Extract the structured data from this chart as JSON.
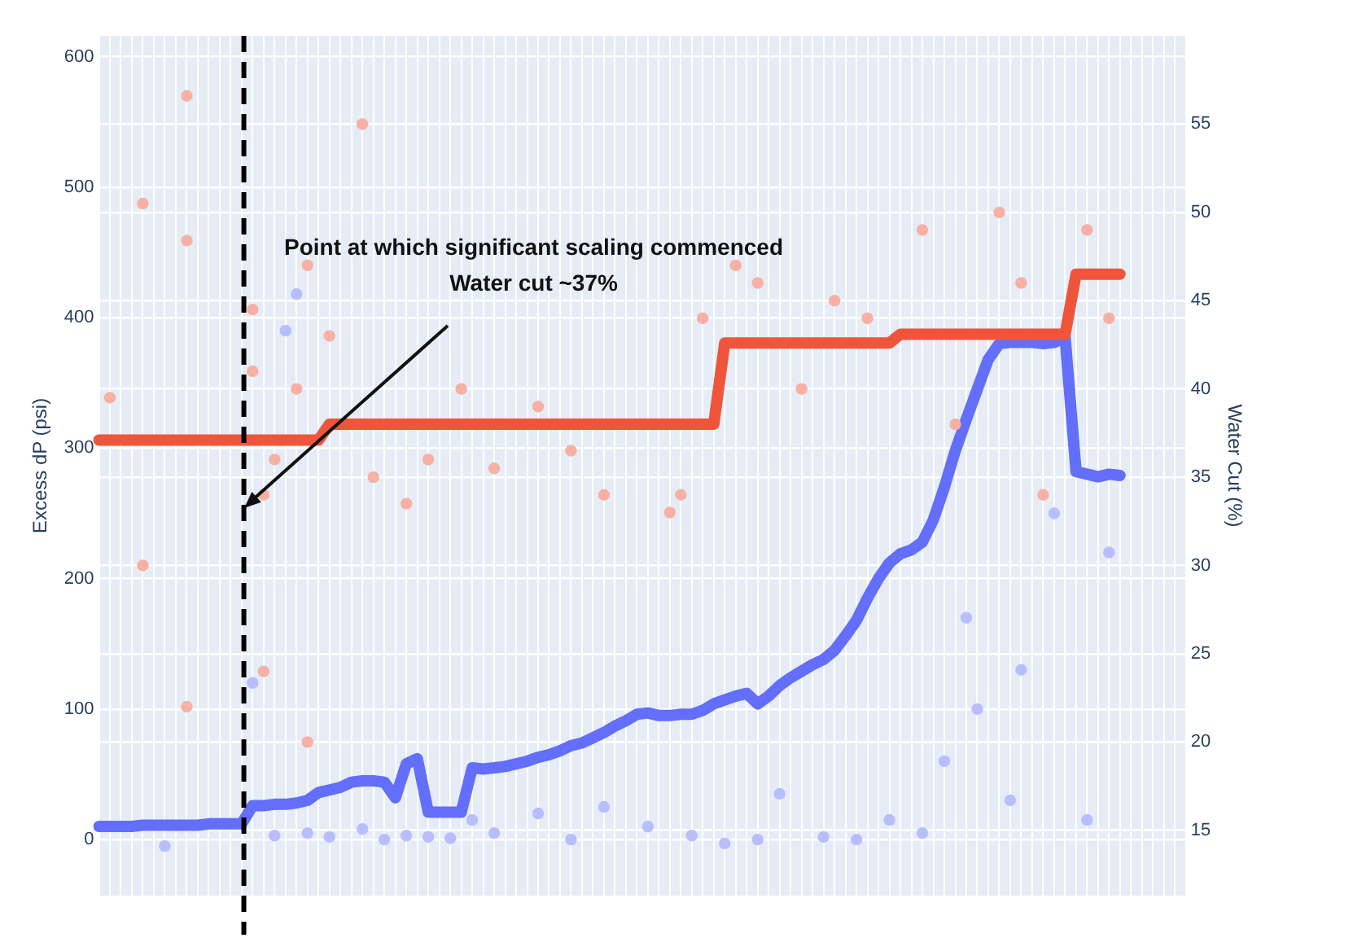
{
  "chart_data": {
    "type": "line",
    "ylabel": "Excess dP (psi)",
    "y2label": "Water Cut (%)",
    "annotations": [
      "Point at which significant scaling commenced\nWater cut ~37%"
    ],
    "categories": [
      null,
      null,
      null,
      null,
      null,
      null,
      null,
      null,
      null,
      null,
      null,
      null,
      null,
      null,
      null,
      null,
      null,
      null,
      null,
      null,
      null,
      null,
      null,
      null,
      null,
      null,
      null,
      null,
      null,
      null,
      null,
      null,
      null,
      null,
      null,
      null,
      null,
      null,
      null,
      null,
      null,
      null,
      null,
      null,
      null,
      null,
      null,
      null,
      null,
      null,
      null,
      null,
      null,
      null,
      null,
      null,
      null,
      null,
      null,
      null,
      null,
      null,
      null,
      null,
      null,
      null,
      null,
      null,
      null,
      null,
      null,
      null,
      null,
      null,
      null,
      null,
      null,
      null,
      null,
      null,
      null,
      null,
      null,
      null,
      null,
      null,
      null,
      null,
      null,
      null,
      null,
      null,
      null,
      null,
      null,
      null,
      null,
      null,
      null,
      null
    ],
    "ylim": [
      -43,
      616
    ],
    "yticks": [
      0,
      100,
      200,
      300,
      400,
      500,
      600
    ],
    "y2lim": [
      11.3,
      60
    ],
    "y2ticks": [
      15,
      20,
      25,
      30,
      35,
      40,
      45,
      50,
      55
    ],
    "grid": true,
    "legend": false,
    "series": [
      {
        "type": "scatter",
        "color": "#f6b0a4",
        "axis": "y2",
        "values": [
          null,
          39.5,
          null,
          null,
          50.5,
          null,
          null,
          null,
          56.6,
          null,
          null,
          null,
          null,
          null,
          44.5,
          34,
          36,
          null,
          40,
          47,
          null,
          43,
          null,
          null,
          55,
          35,
          null,
          null,
          33.5,
          null,
          36,
          null,
          null,
          40,
          null,
          null,
          35.5,
          null,
          null,
          null,
          39,
          null,
          null,
          36.5,
          null,
          null,
          34,
          null,
          null,
          null,
          null,
          null,
          33,
          null,
          null,
          44,
          null,
          null,
          47,
          null,
          46,
          null,
          null,
          null,
          40,
          null,
          null,
          45,
          null,
          null,
          44,
          null,
          null,
          null,
          null,
          49,
          null,
          null,
          38,
          null,
          null,
          null,
          50,
          null,
          46,
          null,
          34,
          null,
          null,
          null,
          49,
          null,
          44,
          null,
          null,
          null,
          null,
          null,
          null,
          null
        ]
      },
      {
        "type": "scatter",
        "color": "#f6b0a4",
        "axis": "y2",
        "values": [
          null,
          null,
          null,
          null,
          30,
          null,
          null,
          null,
          48.4,
          null,
          null,
          null,
          null,
          null,
          41,
          24,
          null,
          null,
          null,
          20,
          null,
          null,
          null,
          null,
          null,
          null,
          null,
          null,
          null,
          null,
          null,
          null,
          null,
          null,
          null,
          null,
          null,
          null,
          null,
          null,
          null,
          null,
          null,
          null,
          null,
          null,
          null,
          null,
          null,
          null,
          null,
          null,
          null,
          34,
          null,
          null,
          null,
          null,
          null,
          null,
          null,
          null,
          null,
          null,
          null,
          null,
          null,
          null,
          null,
          null,
          null,
          null,
          null,
          null,
          null,
          null,
          null,
          null,
          null,
          null,
          null,
          null,
          null,
          null,
          null,
          null,
          null,
          null,
          null,
          null,
          null,
          null,
          null,
          null,
          null,
          null,
          null,
          null,
          null,
          null
        ]
      },
      {
        "type": "scatter",
        "color": "#f6b0a4",
        "axis": "y2",
        "values": [
          null,
          null,
          null,
          null,
          null,
          null,
          null,
          null,
          22,
          null,
          null,
          null,
          null,
          null,
          null,
          null,
          null,
          null,
          null,
          null,
          null,
          null,
          null,
          null,
          null,
          null,
          null,
          null,
          null,
          null,
          null,
          null,
          null,
          null,
          null,
          null,
          null,
          null,
          null,
          null,
          null,
          null,
          null,
          null,
          null,
          null,
          null,
          null,
          null,
          null,
          null,
          null,
          null,
          null,
          null,
          null,
          null,
          null,
          null,
          null,
          null,
          null,
          null,
          null,
          null,
          null,
          null,
          null,
          null,
          null,
          null,
          null,
          null,
          null,
          null,
          null,
          null,
          null,
          null,
          null,
          null,
          null,
          null,
          null,
          null,
          null,
          null,
          null,
          null,
          null,
          null,
          null,
          null,
          null,
          null,
          null,
          null,
          null,
          null,
          null
        ]
      },
      {
        "type": "scatter",
        "color": "#b8bdfc",
        "axis": "y",
        "values": [
          null,
          null,
          null,
          null,
          null,
          null,
          -5,
          null,
          null,
          null,
          null,
          null,
          null,
          null,
          120,
          null,
          3,
          390,
          418,
          5,
          null,
          2,
          null,
          null,
          8,
          null,
          0,
          null,
          3,
          null,
          2,
          null,
          1,
          null,
          15,
          null,
          5,
          null,
          null,
          null,
          20,
          null,
          null,
          0,
          null,
          null,
          25,
          null,
          null,
          null,
          10,
          null,
          null,
          null,
          3,
          null,
          null,
          -3,
          null,
          null,
          0,
          null,
          35,
          null,
          null,
          null,
          2,
          null,
          null,
          0,
          null,
          null,
          15,
          null,
          null,
          5,
          null,
          60,
          null,
          170,
          100,
          null,
          null,
          30,
          130,
          null,
          null,
          250,
          null,
          null,
          15,
          null,
          220,
          null,
          null,
          null,
          null,
          null,
          null,
          null
        ]
      },
      {
        "color": "#ef553b",
        "axis": "y2",
        "values": [
          37.1,
          37.1,
          37.1,
          37.1,
          37.1,
          37.1,
          37.1,
          37.1,
          37.1,
          37.1,
          37.1,
          37.1,
          37.1,
          37.1,
          37.1,
          37.1,
          37.1,
          37.1,
          37.1,
          37.1,
          37.1,
          38,
          38,
          38,
          38,
          38,
          38,
          38,
          38,
          38,
          38,
          38,
          38,
          38,
          38,
          38,
          38,
          38,
          38,
          38,
          38,
          38,
          38,
          38,
          38,
          38,
          38,
          38,
          38,
          38,
          38,
          38,
          38,
          38,
          38,
          38,
          38,
          42.6,
          42.6,
          42.6,
          42.6,
          42.6,
          42.6,
          42.6,
          42.6,
          42.6,
          42.6,
          42.6,
          42.6,
          42.6,
          42.6,
          42.6,
          42.6,
          43.1,
          43.1,
          43.1,
          43.1,
          43.1,
          43.1,
          43.1,
          43.1,
          43.1,
          43.1,
          43.1,
          43.1,
          43.1,
          43.1,
          43.1,
          43.1,
          46.5,
          46.5,
          46.5,
          46.5,
          46.5,
          null,
          null,
          null,
          null,
          null,
          null
        ]
      },
      {
        "color": "#636efa",
        "axis": "y",
        "values": [
          10,
          10,
          10,
          10,
          11,
          11,
          11,
          11,
          11,
          11,
          12,
          12,
          12,
          12,
          26,
          26,
          27,
          27,
          28,
          30,
          36,
          38,
          40,
          44,
          45,
          45,
          44,
          32,
          58,
          62,
          21,
          21,
          21,
          21,
          55,
          54,
          55,
          56,
          58,
          60,
          63,
          65,
          68,
          72,
          74,
          78,
          82,
          87,
          91,
          96,
          97,
          95,
          95,
          96,
          96,
          99,
          104,
          107,
          110,
          112,
          104,
          110,
          118,
          124,
          129,
          134,
          138,
          145,
          156,
          168,
          185,
          200,
          212,
          219,
          222,
          228,
          245,
          270,
          298,
          322,
          345,
          368,
          380,
          381,
          381,
          381,
          380,
          381,
          385,
          282,
          280,
          278,
          280,
          279,
          null,
          null,
          null,
          null,
          null,
          null
        ]
      }
    ]
  }
}
